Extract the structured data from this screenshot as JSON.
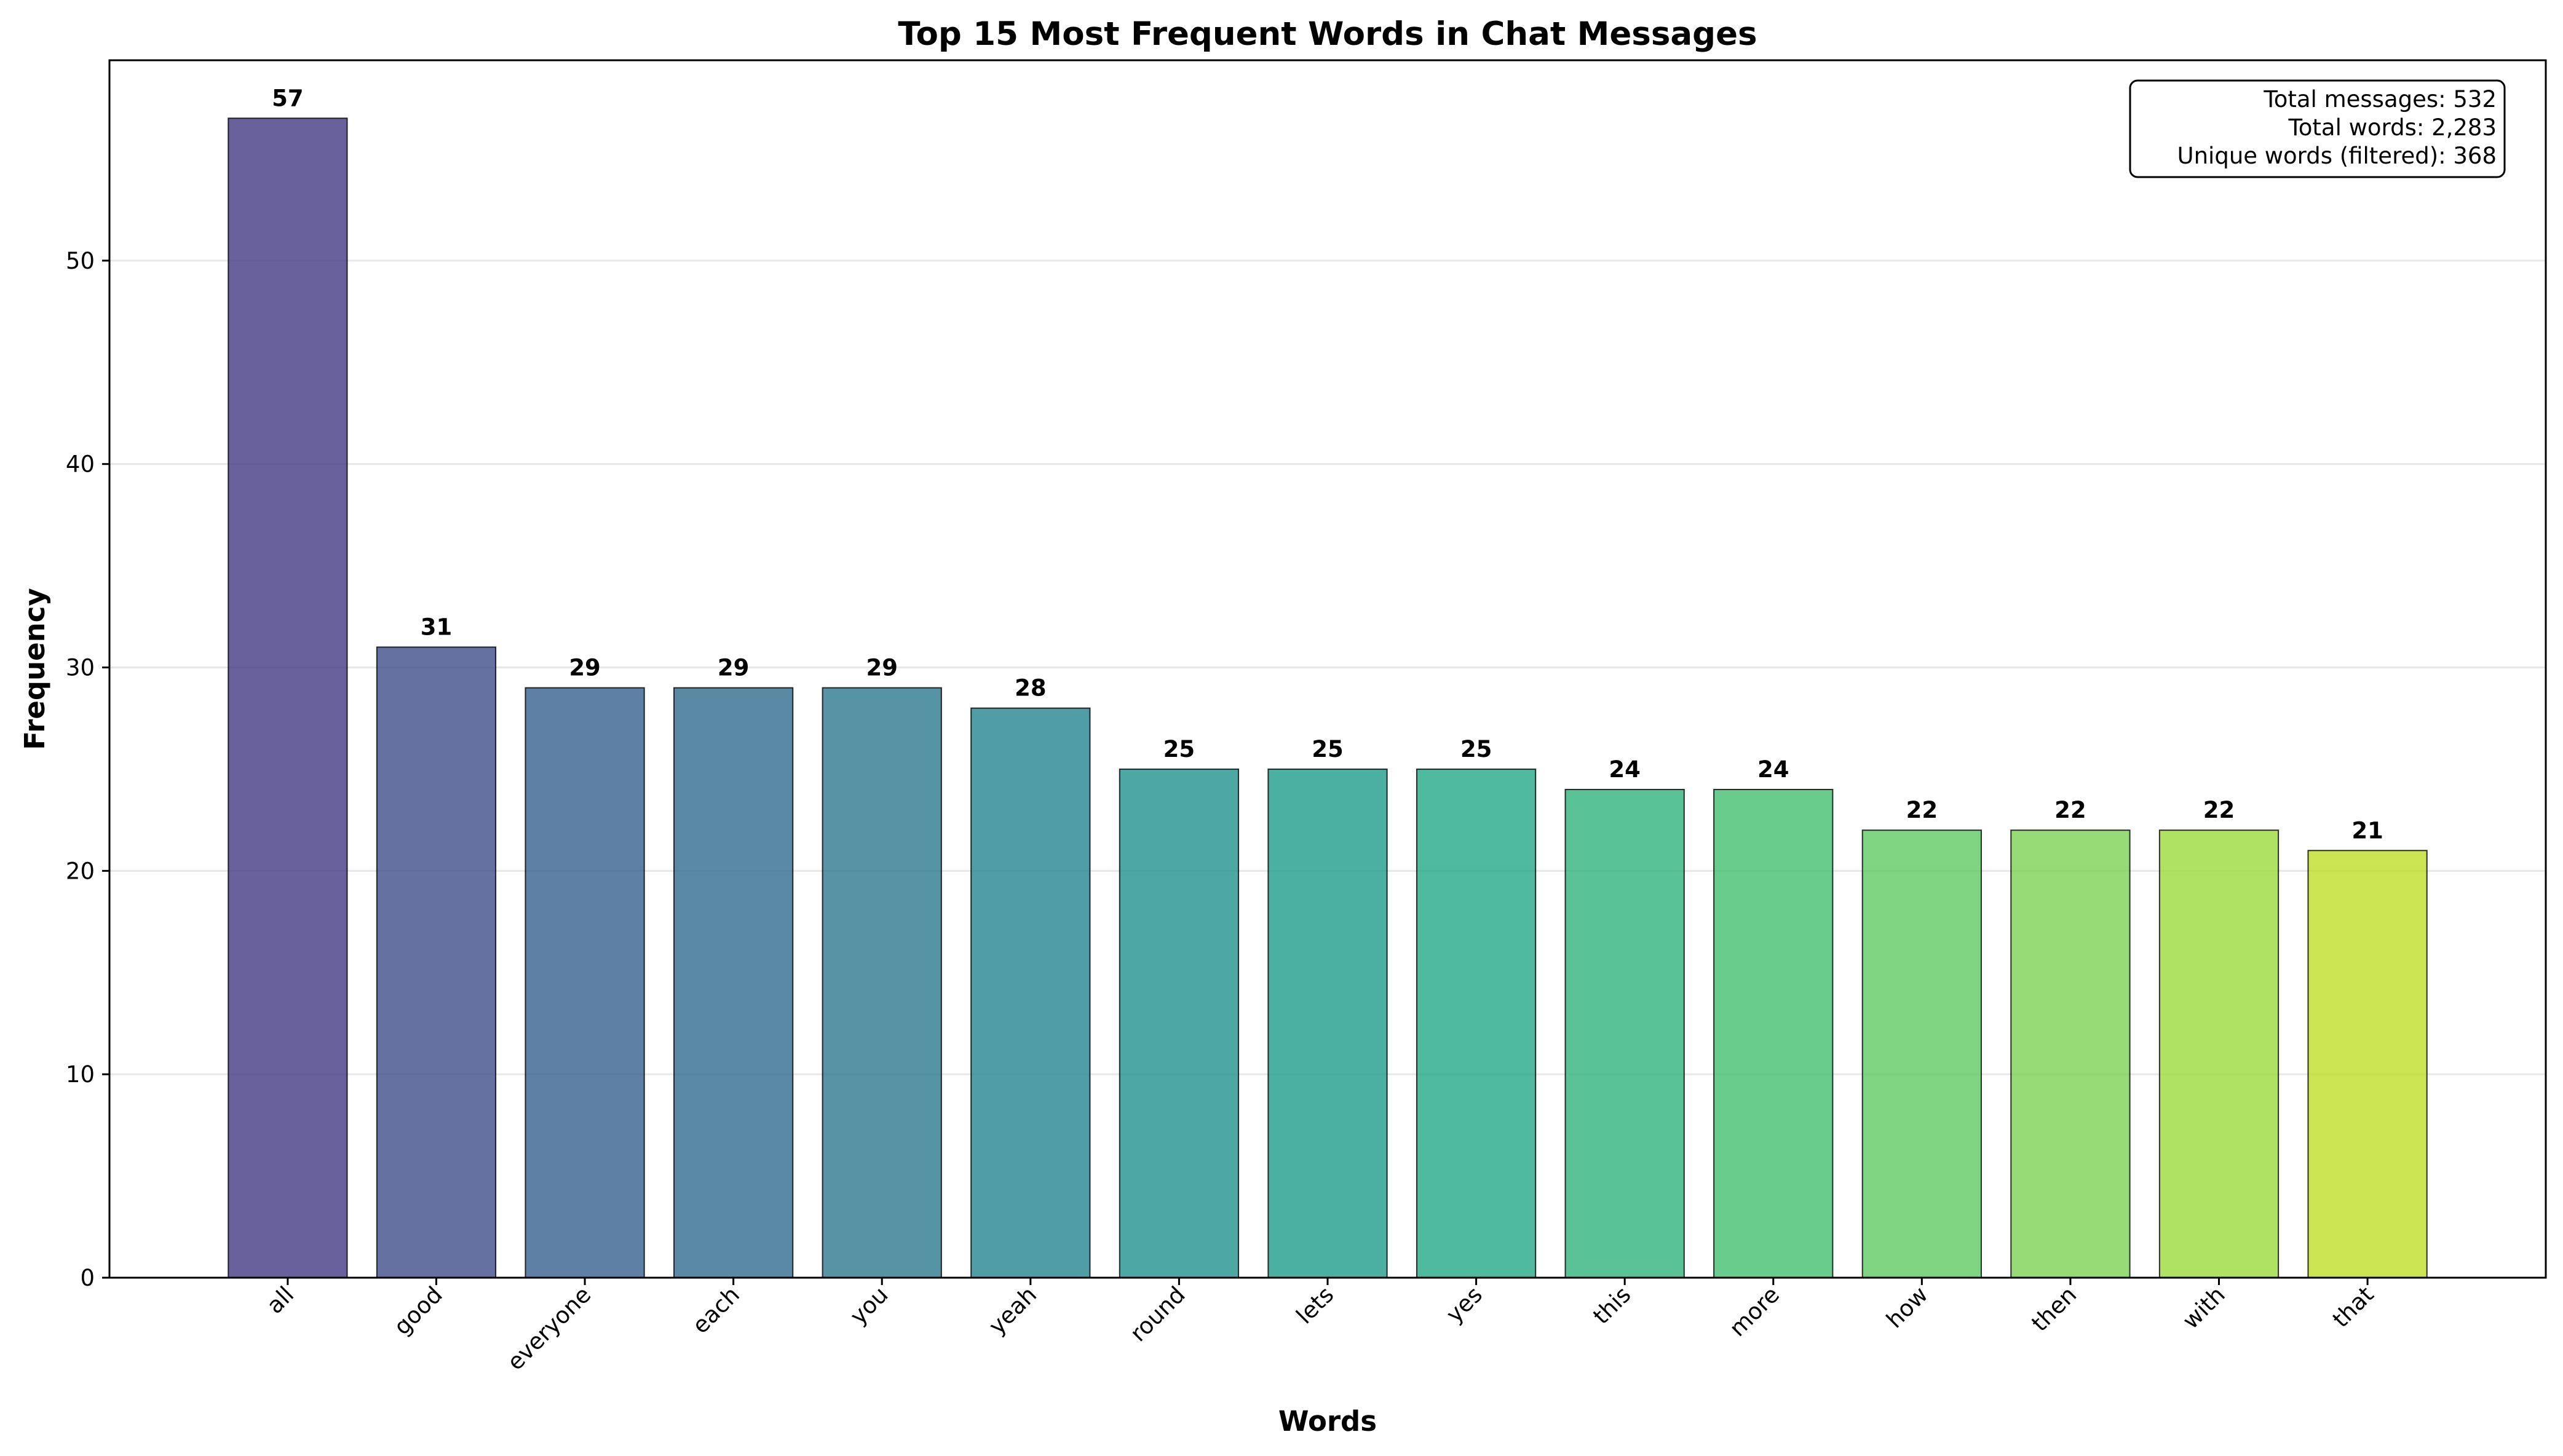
{
  "chart_data": {
    "type": "bar",
    "title": "Top 15 Most Frequent Words in Chat Messages",
    "xlabel": "Words",
    "ylabel": "Frequency",
    "categories": [
      "all",
      "good",
      "everyone",
      "each",
      "you",
      "yeah",
      "round",
      "lets",
      "yes",
      "this",
      "more",
      "how",
      "then",
      "with",
      "that"
    ],
    "values": [
      57,
      31,
      29,
      29,
      29,
      28,
      25,
      25,
      25,
      24,
      24,
      22,
      22,
      22,
      21
    ],
    "colors": [
      "#443983",
      "#3d4e8a",
      "#35608d",
      "#2f6c8e",
      "#2a788e",
      "#25848e",
      "#21918c",
      "#1e9c89",
      "#22a884",
      "#2fb47c",
      "#44bf70",
      "#5ec962",
      "#7ad151",
      "#9bd93c",
      "#bddf26"
    ],
    "ylim": [
      0,
      59.85
    ],
    "yticks": [
      0,
      10,
      20,
      30,
      40,
      50
    ],
    "grid": "y",
    "annotation": {
      "position": "top-right",
      "lines": [
        "Total messages: 532",
        "Total words: 2,283",
        "Unique words (filtered): 368"
      ]
    }
  }
}
